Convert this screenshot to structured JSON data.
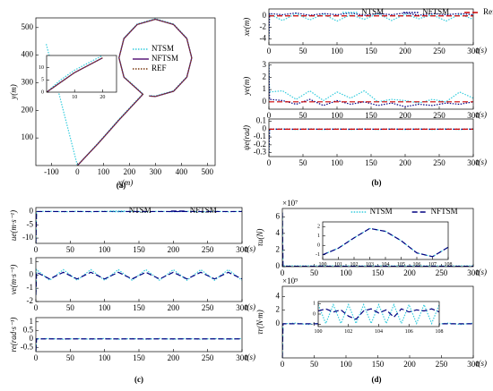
{
  "panels": [
    "(a)",
    "(b)",
    "(c)",
    "(d)"
  ],
  "chart_data": [
    {
      "type": "line",
      "xlabel": "x(m)",
      "ylabel": "y(m)",
      "xlim": [
        -160,
        530
      ],
      "ylim": [
        0,
        535
      ],
      "xticks": [
        -100,
        0,
        100,
        200,
        300,
        400,
        500
      ],
      "yticks": [
        100,
        200,
        300,
        400,
        500
      ],
      "legend": "upper-right",
      "series": [
        {
          "name": "NTSM",
          "color": "#33ccdd",
          "style": "dotted",
          "x": [
            -120,
            0,
            80,
            160,
            252,
            179,
            160,
            179,
            230,
            300,
            370,
            421,
            440,
            421,
            370,
            300,
            276
          ],
          "values": [
            440,
            0,
            82,
            168,
            260,
            322,
            392,
            462,
            513,
            532,
            513,
            462,
            392,
            322,
            271,
            252,
            254
          ]
        },
        {
          "name": "NFTSM",
          "color": "#5a1a7a",
          "style": "solid",
          "x": [
            0,
            80,
            160,
            252,
            179,
            160,
            179,
            230,
            300,
            370,
            421,
            440,
            421,
            370,
            300,
            276
          ],
          "values": [
            0,
            80,
            165,
            258,
            320,
            390,
            460,
            511,
            530,
            511,
            460,
            390,
            320,
            269,
            250,
            252
          ]
        },
        {
          "name": "REF",
          "color": "#7a3a10",
          "style": "dotted",
          "x": [
            0,
            80,
            160,
            252,
            179,
            160,
            179,
            230,
            300,
            370,
            421,
            440,
            421,
            370,
            300,
            276
          ],
          "values": [
            0,
            80,
            165,
            258,
            320,
            390,
            460,
            511,
            530,
            511,
            460,
            390,
            320,
            269,
            250,
            252
          ]
        }
      ]
    },
    {
      "type": "line",
      "xlim": [
        0,
        25
      ],
      "ylim": [
        0,
        15
      ],
      "xticks": [
        10,
        20
      ],
      "yticks": [
        0,
        5,
        10
      ],
      "series": [
        {
          "color": "#33ccdd",
          "style": "dotted",
          "x": [
            0,
            5,
            10,
            15,
            20
          ],
          "values": [
            0,
            5,
            9,
            12,
            15
          ]
        },
        {
          "color": "#5a1a7a",
          "style": "solid",
          "x": [
            0,
            5,
            10,
            15,
            20
          ],
          "values": [
            0,
            4,
            8,
            11,
            14
          ]
        },
        {
          "color": "#7a3a10",
          "style": "dotted",
          "x": [
            0,
            5,
            10,
            15,
            20
          ],
          "values": [
            0,
            4,
            8,
            11,
            14
          ]
        }
      ]
    },
    {
      "type": "line",
      "xlabel": "t(s)",
      "ylabel": "xe(m)",
      "xlim": [
        0,
        300
      ],
      "ylim": [
        -5,
        1.2
      ],
      "xticks": [
        0,
        50,
        100,
        150,
        200,
        250,
        300
      ],
      "yticks": [
        -4,
        -2,
        0
      ],
      "legend": "top",
      "x": [
        0,
        1,
        20,
        40,
        60,
        80,
        100,
        120,
        140,
        160,
        180,
        200,
        220,
        240,
        260,
        280,
        300
      ],
      "series": [
        {
          "name": "NTSM",
          "color": "#33ccdd",
          "style": "dotted",
          "values": [
            -4,
            0.3,
            -0.8,
            0.4,
            -0.7,
            0.3,
            -0.9,
            0.2,
            -0.6,
            0.4,
            -0.8,
            0.3,
            -0.5,
            0.2,
            -0.9,
            0.3,
            -0.6
          ]
        },
        {
          "name": "NFTSM",
          "color": "#000080",
          "style": "dotted",
          "values": [
            -4,
            0.4,
            0.2,
            0.5,
            0.1,
            0.4,
            0.2,
            0.5,
            0.1,
            0.4,
            0.2,
            0.5,
            0.1,
            0.4,
            0.2,
            0.4,
            0.2
          ]
        },
        {
          "name": "Reference Error",
          "color": "#cc0000",
          "style": "dashed",
          "values": [
            0,
            0,
            0,
            0,
            0,
            0,
            0,
            0,
            0,
            0,
            0,
            0,
            0,
            0,
            0,
            0,
            0
          ]
        }
      ]
    },
    {
      "type": "line",
      "xlabel": "t(s)",
      "ylabel": "ye(m)",
      "xlim": [
        0,
        300
      ],
      "ylim": [
        -0.6,
        3.2
      ],
      "xticks": [
        0,
        50,
        100,
        150,
        200,
        250,
        300
      ],
      "yticks": [
        0,
        1,
        2,
        3
      ],
      "x": [
        0,
        1,
        20,
        40,
        60,
        80,
        100,
        120,
        140,
        160,
        180,
        200,
        220,
        240,
        260,
        280,
        300
      ],
      "series": [
        {
          "color": "#33ccdd",
          "style": "dotted",
          "values": [
            3,
            0.8,
            0.9,
            0.2,
            0.9,
            0.1,
            0.8,
            0.3,
            0.9,
            0.0,
            0.2,
            0.1,
            -0.1,
            0.2,
            0.0,
            0.8,
            0.3
          ]
        },
        {
          "color": "#000080",
          "style": "dotted",
          "values": [
            3,
            0.2,
            0.1,
            -0.2,
            0.2,
            -0.3,
            0.1,
            -0.2,
            0.0,
            -0.3,
            -0.1,
            -0.4,
            -0.2,
            -0.3,
            -0.1,
            -0.2,
            0.0
          ]
        },
        {
          "color": "#cc0000",
          "style": "dashed",
          "values": [
            0,
            0,
            0,
            0,
            0,
            0,
            0,
            0,
            0,
            0,
            0,
            0,
            0,
            0,
            0,
            0,
            0
          ]
        }
      ]
    },
    {
      "type": "line",
      "xlabel": "t(s)",
      "ylabel": "ψe(rad)",
      "xlim": [
        0,
        300
      ],
      "ylim": [
        -0.35,
        0.13
      ],
      "xticks": [
        0,
        50,
        100,
        150,
        200,
        250,
        300
      ],
      "yticks": [
        0.1,
        0,
        -0.1,
        -0.2,
        -0.3
      ],
      "x": [
        0,
        1,
        20,
        40,
        60,
        80,
        100,
        120,
        140,
        160,
        180,
        200,
        220,
        240,
        260,
        280,
        300
      ],
      "series": [
        {
          "color": "#33ccdd",
          "style": "dotted",
          "values": [
            -0.3,
            0,
            0.005,
            -0.005,
            0.005,
            -0.005,
            0.005,
            -0.005,
            0.005,
            -0.005,
            0.005,
            -0.005,
            0.005,
            -0.005,
            0.005,
            -0.005,
            0.005
          ]
        },
        {
          "color": "#000080",
          "style": "dotted",
          "values": [
            -0.3,
            0,
            0,
            0,
            0,
            0,
            0,
            0,
            0,
            0,
            0,
            0,
            0,
            0,
            0,
            0,
            0
          ]
        },
        {
          "color": "#cc0000",
          "style": "dashed",
          "values": [
            0,
            0,
            0,
            0,
            0,
            0,
            0,
            0,
            0,
            0,
            0,
            0,
            0,
            0,
            0,
            0,
            0
          ]
        }
      ]
    },
    {
      "type": "line",
      "xlabel": "t(s)",
      "ylabel": "ue(m·s⁻¹)",
      "xlim": [
        0,
        300
      ],
      "ylim": [
        -12,
        1.5
      ],
      "xticks": [
        0,
        50,
        100,
        150,
        200,
        250,
        300
      ],
      "yticks": [
        0,
        -5,
        -10
      ],
      "legend": "top",
      "x": [
        0,
        1,
        20,
        40,
        60,
        80,
        100,
        120,
        140,
        160,
        180,
        200,
        220,
        240,
        260,
        280,
        300
      ],
      "series": [
        {
          "name": "NTSM",
          "color": "#33ccdd",
          "style": "dotted",
          "values": [
            -12,
            0,
            0.1,
            -0.1,
            0.1,
            -0.1,
            0.1,
            -0.1,
            0.1,
            -0.1,
            0.1,
            -0.1,
            0.1,
            -0.1,
            0.1,
            -0.1,
            0.1
          ]
        },
        {
          "name": "NFTSM",
          "color": "#000080",
          "style": "dashed",
          "values": [
            -12,
            0,
            0,
            0,
            0,
            0,
            0,
            0,
            0,
            0,
            0,
            0,
            0,
            0,
            0,
            0,
            0
          ]
        }
      ]
    },
    {
      "type": "line",
      "xlabel": "t(s)",
      "ylabel": "ve(m·s⁻¹)",
      "xlim": [
        0,
        300
      ],
      "ylim": [
        -2,
        1.3
      ],
      "xticks": [
        0,
        50,
        100,
        150,
        200,
        250,
        300
      ],
      "yticks": [
        1,
        0,
        -1,
        -2
      ],
      "x": [
        0,
        1,
        20,
        40,
        60,
        80,
        100,
        120,
        140,
        160,
        180,
        200,
        220,
        240,
        260,
        280,
        300
      ],
      "series": [
        {
          "color": "#33ccdd",
          "style": "dotted",
          "values": [
            -1.5,
            0.4,
            -0.4,
            0.4,
            -0.4,
            0.4,
            -0.4,
            0.4,
            -0.4,
            0.4,
            -0.4,
            0.4,
            -0.4,
            0.4,
            -0.4,
            0.4,
            -0.4
          ]
        },
        {
          "color": "#000080",
          "style": "dashed",
          "values": [
            -1.5,
            0.2,
            -0.3,
            0.2,
            -0.3,
            0.2,
            -0.3,
            0.2,
            -0.3,
            0.2,
            -0.3,
            0.2,
            -0.3,
            0.2,
            -0.3,
            0.2,
            -0.3
          ]
        }
      ]
    },
    {
      "type": "line",
      "xlabel": "t(s)",
      "ylabel": "re(rad·s⁻¹)",
      "xlim": [
        0,
        300
      ],
      "ylim": [
        -0.75,
        1.25
      ],
      "xticks": [
        0,
        50,
        100,
        150,
        200,
        250,
        300
      ],
      "yticks": [
        1,
        0.5,
        0,
        -0.5
      ],
      "x": [
        0,
        1,
        20,
        40,
        60,
        80,
        100,
        120,
        140,
        160,
        180,
        200,
        220,
        240,
        260,
        280,
        300
      ],
      "series": [
        {
          "color": "#33ccdd",
          "style": "dotted",
          "values": [
            -0.7,
            0,
            0.02,
            -0.02,
            0.02,
            -0.02,
            0.02,
            -0.02,
            0.02,
            -0.02,
            0.02,
            -0.02,
            0.02,
            -0.02,
            0.02,
            -0.02,
            0.02
          ]
        },
        {
          "color": "#000080",
          "style": "dashed",
          "values": [
            -0.7,
            0,
            0,
            0,
            0,
            0,
            0,
            0,
            0,
            0,
            0,
            0,
            0,
            0,
            0,
            0,
            0
          ]
        }
      ]
    },
    {
      "type": "line",
      "xlabel": "t(s)",
      "ylabel": "τu(N)",
      "multiplier": "×10⁷",
      "xlim": [
        0,
        300
      ],
      "ylim": [
        0,
        7
      ],
      "xticks": [
        0,
        50,
        100,
        150,
        200,
        250,
        300
      ],
      "yticks": [
        0,
        2,
        4,
        6
      ],
      "legend": "top",
      "x": [
        0,
        1,
        20,
        40,
        60,
        80,
        100,
        120,
        140,
        160,
        180,
        200,
        220,
        240,
        260,
        280,
        300
      ],
      "series": [
        {
          "name": "NTSM",
          "color": "#33ccdd",
          "style": "dotted",
          "values": [
            6.5,
            0.1,
            0.1,
            0.1,
            0.1,
            0.1,
            0.1,
            0.1,
            0.1,
            0.1,
            0.1,
            0.1,
            0.1,
            0.1,
            0.1,
            0.1,
            0.1
          ]
        },
        {
          "name": "NFTSM",
          "color": "#000080",
          "style": "dashed",
          "values": [
            6.5,
            0.05,
            0.05,
            0.05,
            0.05,
            0.05,
            0.05,
            0.05,
            0.05,
            0.05,
            0.05,
            0.05,
            0.05,
            0.05,
            0.05,
            0.05,
            0.05
          ]
        }
      ]
    },
    {
      "type": "line",
      "xlim": [
        100,
        108
      ],
      "ylim": [
        -1.5,
        2.5
      ],
      "xticks": [
        100,
        101,
        102,
        103,
        104,
        105,
        106,
        107,
        108
      ],
      "yticks": [
        -1,
        0,
        1,
        2
      ],
      "x": [
        100,
        101,
        102,
        103,
        104,
        105,
        106,
        107,
        108
      ],
      "series": [
        {
          "color": "#33ccdd",
          "style": "dotted",
          "values": [
            -1,
            -0.3,
            0.8,
            1.8,
            1.5,
            0.5,
            -0.8,
            -1.2,
            -0.2
          ]
        },
        {
          "color": "#000080",
          "style": "dashed",
          "values": [
            -1,
            -0.3,
            0.8,
            1.8,
            1.5,
            0.5,
            -0.8,
            -1.2,
            -0.2
          ]
        }
      ]
    },
    {
      "type": "line",
      "xlabel": "t(s)",
      "ylabel": "τr(N·m)",
      "multiplier": "×10⁹",
      "xlim": [
        0,
        300
      ],
      "ylim": [
        -5,
        5.5
      ],
      "xticks": [
        0,
        50,
        100,
        150,
        200,
        250,
        300
      ],
      "yticks": [
        0,
        2,
        4
      ],
      "x": [
        0,
        1,
        20,
        40,
        60,
        80,
        100,
        120,
        140,
        160,
        180,
        200,
        220,
        240,
        260,
        280,
        300
      ],
      "series": [
        {
          "color": "#33ccdd",
          "style": "dotted",
          "values": [
            -5,
            0,
            0.1,
            -0.1,
            0.1,
            -0.1,
            0.1,
            -0.1,
            0.1,
            -0.1,
            0.1,
            -0.1,
            0.1,
            -0.1,
            0.1,
            -0.1,
            0.1
          ]
        },
        {
          "color": "#000080",
          "style": "dashed",
          "values": [
            -5,
            0,
            0,
            0,
            0,
            0,
            0,
            0,
            0,
            0,
            0,
            0,
            0,
            0,
            0,
            0,
            0
          ]
        }
      ]
    },
    {
      "type": "line",
      "xlim": [
        100,
        108
      ],
      "ylim": [
        -1.2,
        1.2
      ],
      "xticks": [
        100,
        102,
        104,
        106,
        108
      ],
      "yticks": [
        -1,
        0,
        1
      ],
      "x": [
        100,
        100.5,
        101,
        101.5,
        102,
        102.5,
        103,
        103.5,
        104,
        104.5,
        105,
        105.5,
        106,
        106.5,
        107,
        107.5,
        108
      ],
      "series": [
        {
          "color": "#33ccdd",
          "style": "dotted",
          "values": [
            0.9,
            -0.9,
            0.9,
            -0.9,
            0.9,
            -0.9,
            0.9,
            -0.9,
            0.9,
            -0.9,
            0.9,
            -0.9,
            0.9,
            -0.9,
            0.9,
            -0.9,
            0.9
          ]
        },
        {
          "color": "#000080",
          "style": "dashed",
          "values": [
            0.3,
            0.5,
            0.2,
            0.4,
            -0.2,
            -0.5,
            0.3,
            0.5,
            0.1,
            0.4,
            -0.3,
            0.5,
            0.2,
            0.4,
            0.3,
            0.5,
            0.2
          ]
        }
      ]
    }
  ]
}
